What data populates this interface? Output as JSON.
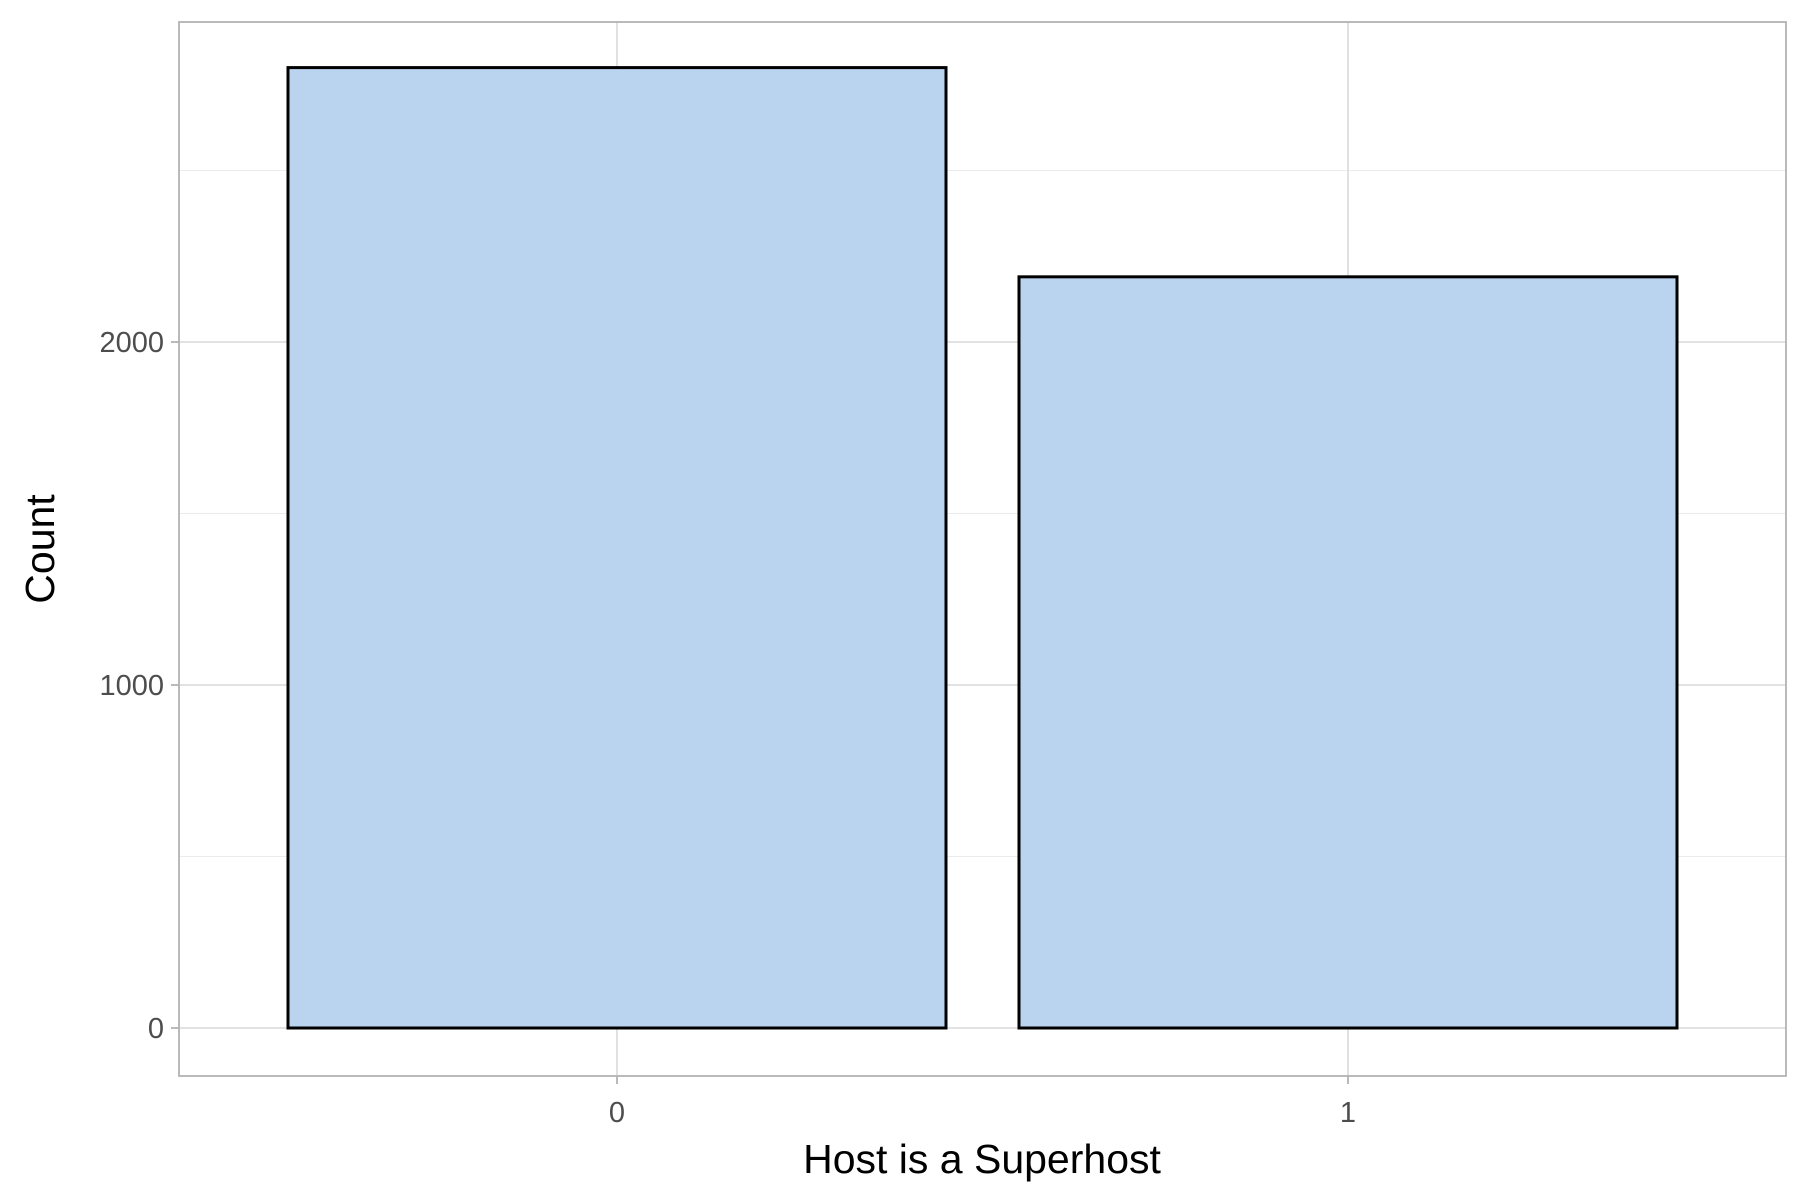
{
  "chart_data": {
    "type": "bar",
    "categories": [
      "0",
      "1"
    ],
    "values": [
      2800,
      2190
    ],
    "title": "",
    "xlabel": "Host is a Superhost",
    "ylabel": "Count",
    "ylim": [
      -140,
      3000
    ],
    "y_ticks": [
      0,
      1000,
      2000
    ],
    "y_tick_labels": [
      "0",
      "1000",
      "2000"
    ],
    "y_minor_ticks": [
      500,
      1500,
      2500
    ],
    "grid": true,
    "legend": "none",
    "colors": {
      "bar_fill": "#bad3ee",
      "bar_stroke": "#000000",
      "grid_major": "#dedede",
      "grid_minor": "#ececec",
      "panel_border": "#b3b3b3",
      "tick_text": "#4d4d4d",
      "axis_title": "#000000"
    }
  }
}
